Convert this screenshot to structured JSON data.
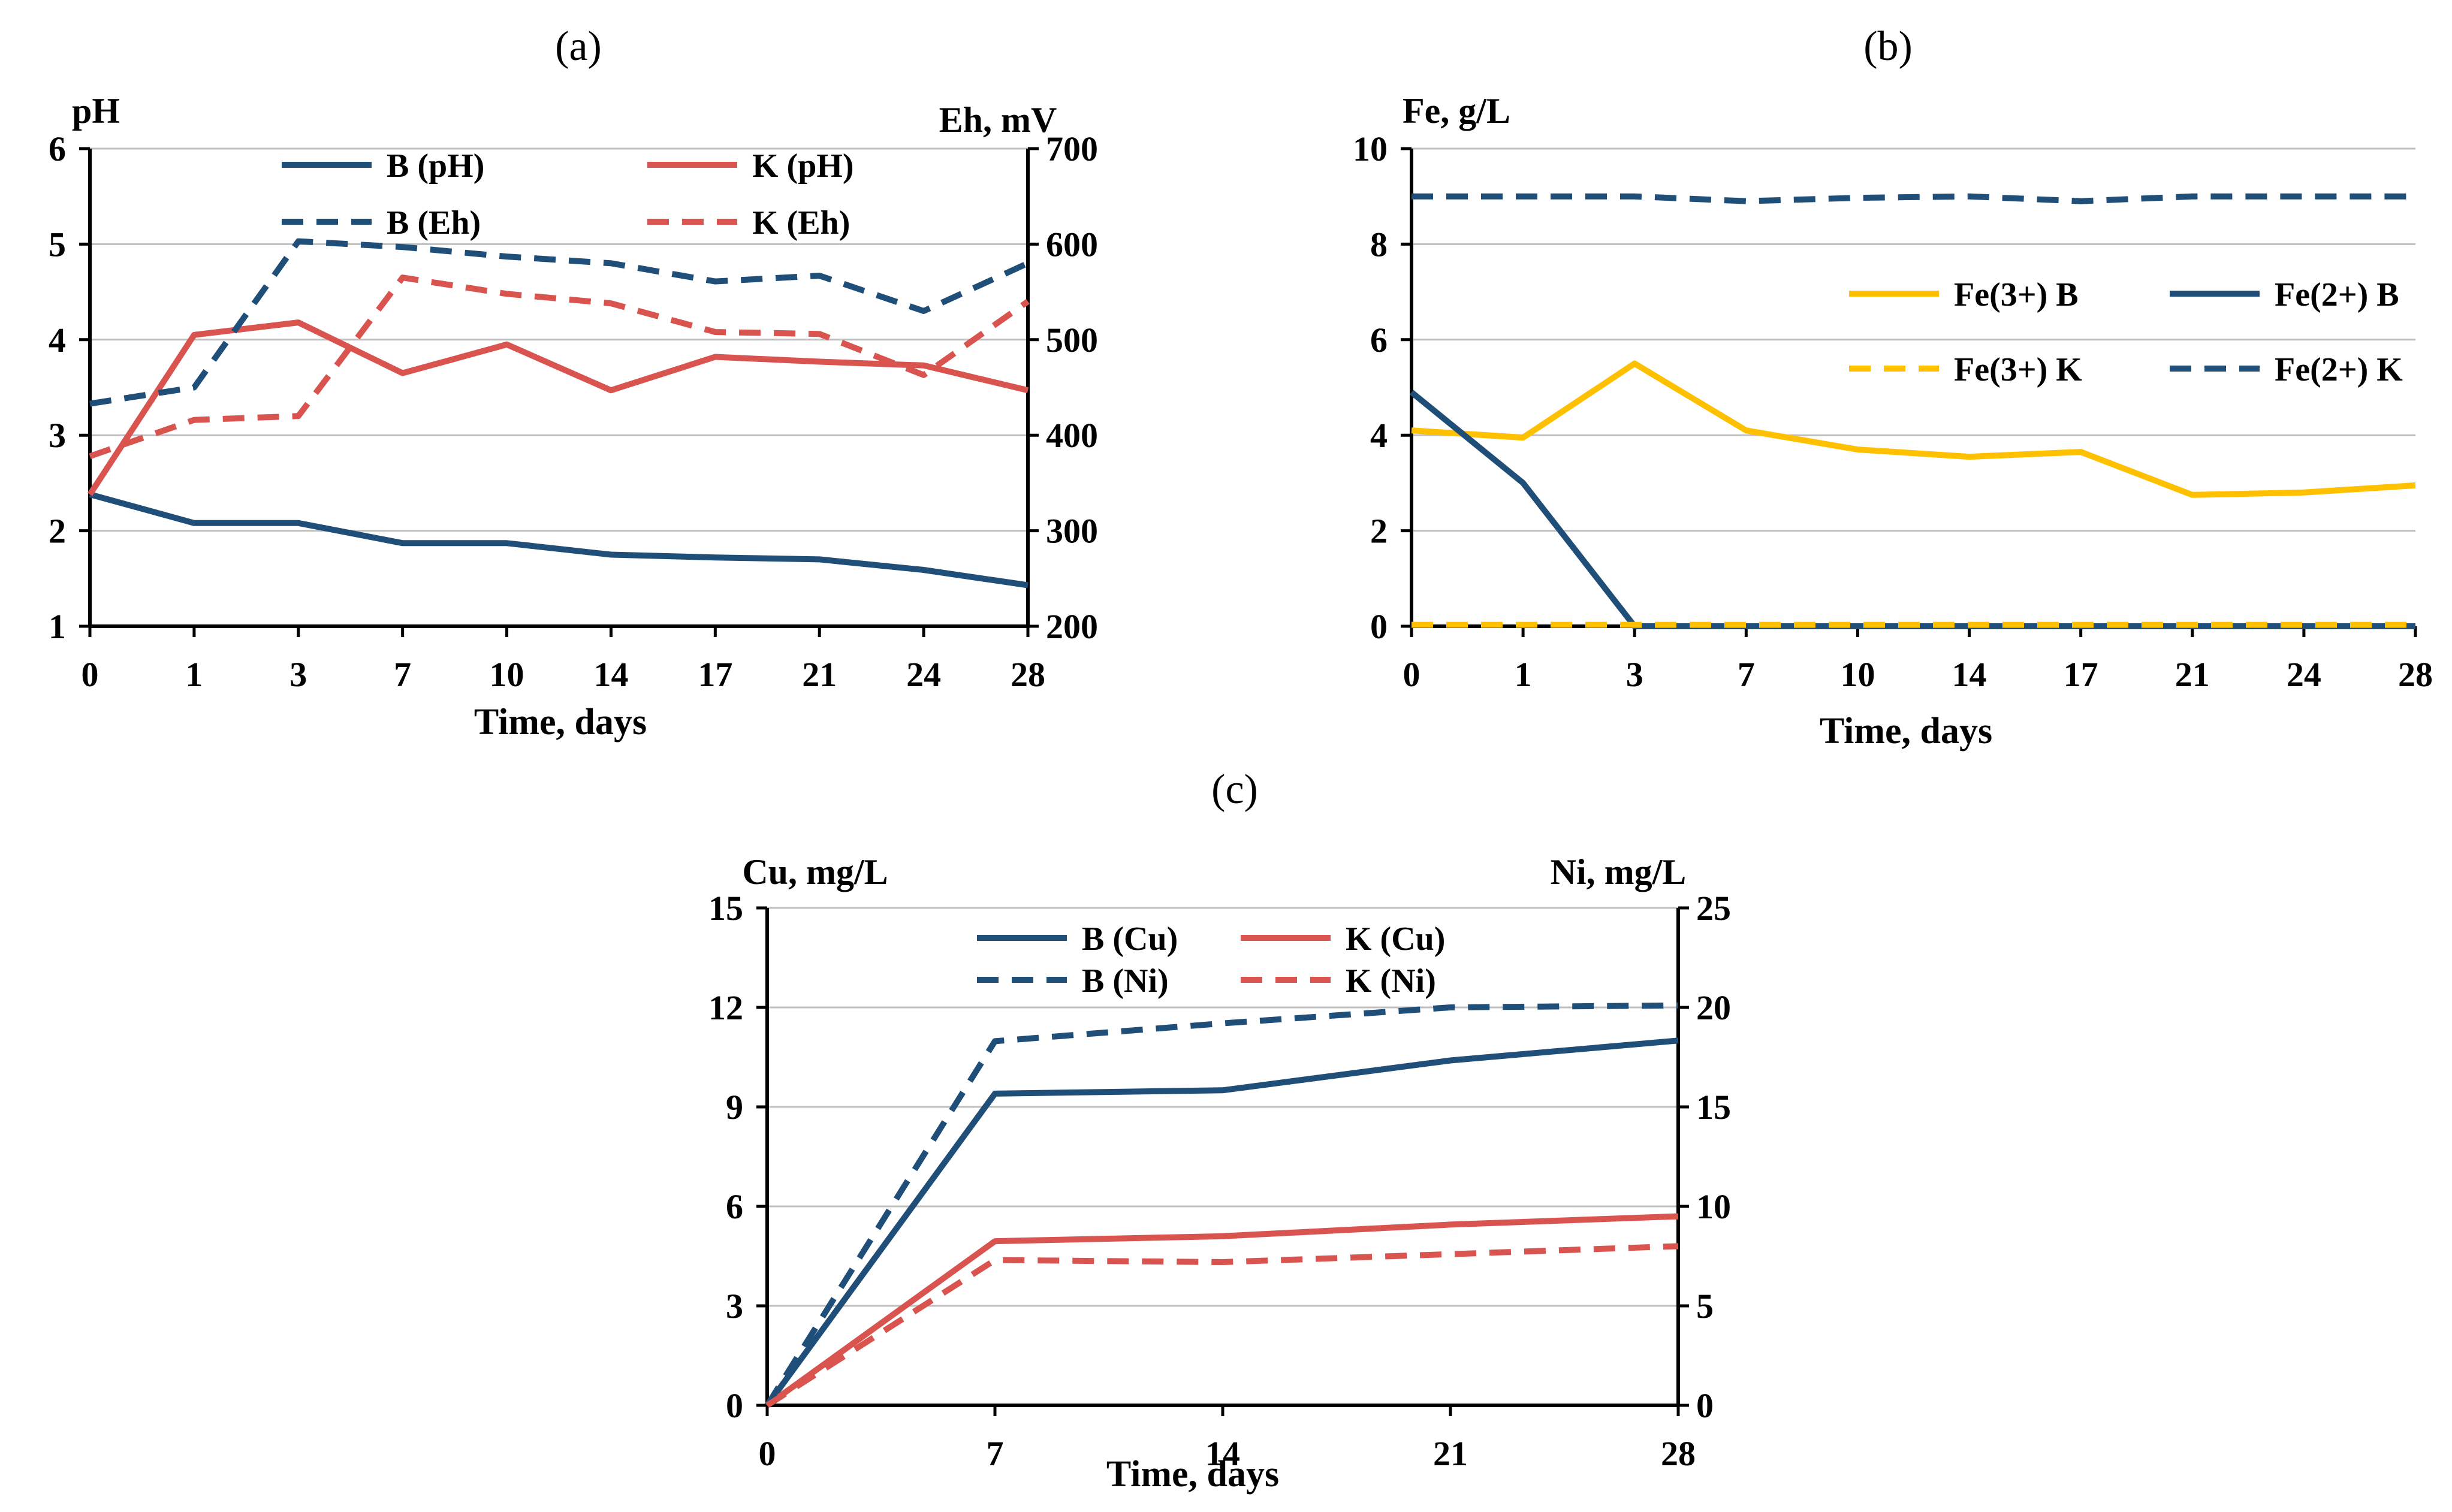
{
  "chart_data": [
    {
      "panel_label": "(a)",
      "type": "line",
      "categories": [
        "0",
        "1",
        "3",
        "7",
        "10",
        "14",
        "17",
        "21",
        "24",
        "28"
      ],
      "xlabel": "Time, days",
      "ylabel_left": "pH",
      "ylabel_right": "Eh, mV",
      "ylim_left": [
        1,
        6
      ],
      "yticks_left": [
        "1",
        "2",
        "3",
        "4",
        "5",
        "6"
      ],
      "ylim_right": [
        200,
        700
      ],
      "yticks_right": [
        "200",
        "300",
        "400",
        "500",
        "600",
        "700"
      ],
      "grid": true,
      "legend_position": "top",
      "series": [
        {
          "name": "B (pH)",
          "axis": "left",
          "color": "#1f4e79",
          "dash": false,
          "values": [
            2.38,
            2.08,
            2.08,
            1.87,
            1.87,
            1.75,
            1.72,
            1.7,
            1.59,
            1.43
          ]
        },
        {
          "name": "K (pH)",
          "axis": "left",
          "color": "#d9534f",
          "dash": false,
          "values": [
            2.38,
            4.05,
            4.18,
            3.65,
            3.95,
            3.47,
            3.82,
            3.77,
            3.73,
            3.47
          ]
        },
        {
          "name": "B (Eh)",
          "axis": "right",
          "color": "#1f4e79",
          "dash": true,
          "values": [
            433,
            450,
            603,
            597,
            587,
            580,
            561,
            567,
            530,
            580
          ]
        },
        {
          "name": "K (Eh)",
          "axis": "right",
          "color": "#d9534f",
          "dash": true,
          "values": [
            378,
            416,
            420,
            565,
            548,
            538,
            508,
            506,
            463,
            540
          ]
        }
      ]
    },
    {
      "panel_label": "(b)",
      "type": "line",
      "categories": [
        "0",
        "1",
        "3",
        "7",
        "10",
        "14",
        "17",
        "21",
        "24",
        "28"
      ],
      "xlabel": "Time, days",
      "ylabel": "Fe, g/L",
      "ylim": [
        0,
        10
      ],
      "yticks": [
        "0",
        "2",
        "4",
        "6",
        "8",
        "10"
      ],
      "grid": true,
      "legend_position": "right",
      "series": [
        {
          "name": "Fe(3+) B",
          "color": "#ffc000",
          "dash": false,
          "values": [
            4.1,
            3.95,
            5.5,
            4.1,
            3.7,
            3.55,
            3.65,
            2.75,
            2.8,
            2.95
          ]
        },
        {
          "name": "Fe(2+) B",
          "color": "#1f4e79",
          "dash": false,
          "values": [
            4.9,
            3.0,
            0.0,
            0.0,
            0.0,
            0.0,
            0.0,
            0.0,
            0.0,
            0.0
          ]
        },
        {
          "name": "Fe(3+) K",
          "color": "#ffc000",
          "dash": true,
          "values": [
            0.03,
            0.03,
            0.03,
            0.03,
            0.03,
            0.03,
            0.03,
            0.03,
            0.03,
            0.03
          ]
        },
        {
          "name": "Fe(2+) K",
          "color": "#1f4e79",
          "dash": true,
          "values": [
            9.0,
            9.0,
            9.0,
            8.9,
            8.97,
            9.0,
            8.9,
            9.0,
            9.0,
            9.0
          ]
        }
      ]
    },
    {
      "panel_label": "(c)",
      "type": "line",
      "categories": [
        "0",
        "7",
        "14",
        "21",
        "28"
      ],
      "xlabel": "Time, days",
      "ylabel_left": "Cu, mg/L",
      "ylabel_right": "Ni, mg/L",
      "ylim_left": [
        0,
        15
      ],
      "yticks_left": [
        "0",
        "3",
        "6",
        "9",
        "12",
        "15"
      ],
      "ylim_right": [
        0,
        25
      ],
      "yticks_right": [
        "0",
        "5",
        "10",
        "15",
        "20",
        "25"
      ],
      "grid": true,
      "legend_position": "top",
      "series": [
        {
          "name": "B (Cu)",
          "axis": "left",
          "color": "#1f4e79",
          "dash": false,
          "values": [
            0.0,
            9.4,
            9.5,
            10.4,
            11.0
          ]
        },
        {
          "name": "K (Cu)",
          "axis": "left",
          "color": "#d9534f",
          "dash": false,
          "values": [
            0.0,
            4.95,
            5.1,
            5.45,
            5.7
          ]
        },
        {
          "name": "B (Ni)",
          "axis": "right",
          "color": "#1f4e79",
          "dash": true,
          "values": [
            0.0,
            18.3,
            19.2,
            20.0,
            20.1
          ]
        },
        {
          "name": "K (Ni)",
          "axis": "right",
          "color": "#d9534f",
          "dash": true,
          "values": [
            0.0,
            7.3,
            7.2,
            7.6,
            8.0
          ]
        }
      ]
    }
  ]
}
